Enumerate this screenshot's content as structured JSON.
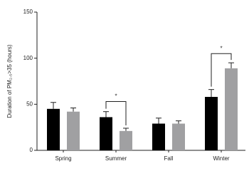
{
  "chart_data": {
    "type": "bar",
    "y_label": "Duration of PM₂.₅>35 (hours)",
    "categories": [
      "Spring",
      "Summer",
      "Fall",
      "Winter"
    ],
    "series": [
      {
        "color": "#000000",
        "values": [
          45,
          36,
          29,
          58
        ],
        "errors": [
          7,
          6,
          6,
          8
        ]
      },
      {
        "color": "#a0a0a2",
        "values": [
          42,
          21,
          29,
          89
        ],
        "errors": [
          4,
          3,
          3,
          6
        ]
      }
    ],
    "annotations": [
      null,
      {
        "text": "*",
        "y": 53
      },
      null,
      {
        "text": "*",
        "y": 105
      }
    ],
    "ylim": [
      0,
      150
    ],
    "yticks": [
      0,
      50,
      100,
      150
    ],
    "grid": false
  }
}
